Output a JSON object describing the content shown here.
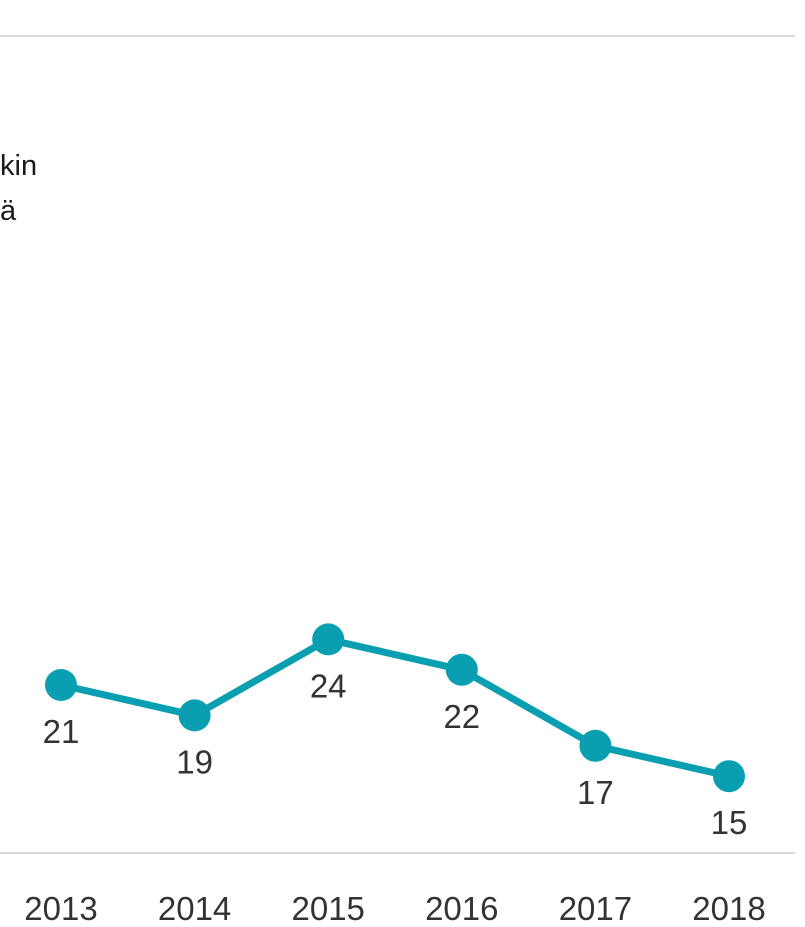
{
  "chart_data": {
    "type": "line",
    "categories": [
      "2013",
      "2014",
      "2015",
      "2016",
      "2017",
      "2018"
    ],
    "series": [
      {
        "values": [
          21,
          19,
          24,
          22,
          17,
          15
        ]
      }
    ],
    "title_fragments": [
      "kin",
      "ä"
    ],
    "title": "",
    "xlabel": "",
    "ylabel": "",
    "grid": false,
    "colors": {
      "line": "#0a9fb0",
      "axis_rule": "#d9d9d9",
      "text": "#333333"
    }
  }
}
